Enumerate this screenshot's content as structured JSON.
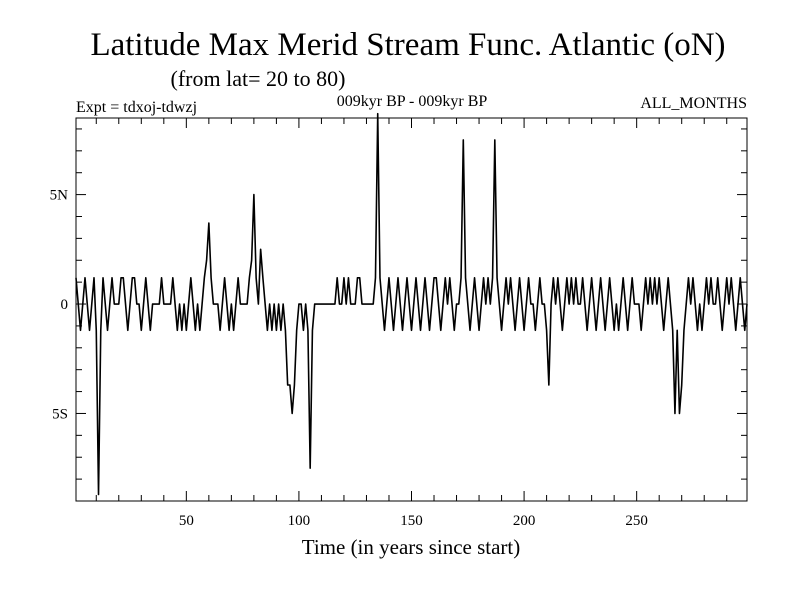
{
  "chart_data": {
    "type": "line",
    "title": "Latitude Max Merid Stream Func. Atlantic (oN)",
    "subtitle": "(from lat= 20 to 80)",
    "experiment": "Expt = tdxoj-tdwzj",
    "period": "009kyr BP - 009kyr BP",
    "season": "ALL_MONTHS",
    "xlabel": "Time (in years since start)",
    "ylabel": "",
    "xlim": [
      1,
      299
    ],
    "ylim": [
      -9,
      8.5
    ],
    "x_ticks": [
      50,
      100,
      150,
      200,
      250
    ],
    "x_tick_labels": [
      "50",
      "100",
      "150",
      "200",
      "250"
    ],
    "y_ticks": [
      5,
      0,
      -5
    ],
    "y_tick_labels": [
      "5N",
      "0",
      "5S"
    ],
    "line_color": "#000000",
    "grid": false,
    "series": [
      {
        "points": [
          [
            1,
            1.2
          ],
          [
            2,
            0
          ],
          [
            3,
            -1.2
          ],
          [
            4,
            0
          ],
          [
            5,
            1.2
          ],
          [
            6,
            0
          ],
          [
            7,
            -1.2
          ],
          [
            8,
            0
          ],
          [
            9,
            1.2
          ],
          [
            10,
            -1.2
          ],
          [
            11,
            -8.7
          ],
          [
            12,
            -1.2
          ],
          [
            13,
            1.2
          ],
          [
            14,
            0
          ],
          [
            15,
            -1.2
          ],
          [
            16,
            0
          ],
          [
            17,
            1.2
          ],
          [
            18,
            0
          ],
          [
            19,
            0
          ],
          [
            20,
            0
          ],
          [
            21,
            1.2
          ],
          [
            22,
            1.2
          ],
          [
            23,
            0
          ],
          [
            24,
            -1.2
          ],
          [
            25,
            0
          ],
          [
            26,
            1.2
          ],
          [
            27,
            1.2
          ],
          [
            28,
            0
          ],
          [
            29,
            0
          ],
          [
            30,
            -1.2
          ],
          [
            31,
            0
          ],
          [
            32,
            1.2
          ],
          [
            33,
            0
          ],
          [
            34,
            -1.2
          ],
          [
            35,
            0
          ],
          [
            36,
            0
          ],
          [
            37,
            0
          ],
          [
            38,
            0
          ],
          [
            39,
            1.2
          ],
          [
            40,
            0
          ],
          [
            41,
            0
          ],
          [
            42,
            0
          ],
          [
            43,
            0
          ],
          [
            44,
            1.2
          ],
          [
            45,
            0
          ],
          [
            46,
            -1.2
          ],
          [
            47,
            0
          ],
          [
            48,
            -1.2
          ],
          [
            49,
            0
          ],
          [
            50,
            -1.2
          ],
          [
            51,
            0
          ],
          [
            52,
            1.2
          ],
          [
            53,
            0
          ],
          [
            54,
            -1.2
          ],
          [
            55,
            0
          ],
          [
            56,
            -1.2
          ],
          [
            57,
            0
          ],
          [
            58,
            1.2
          ],
          [
            59,
            2
          ],
          [
            60,
            3.7
          ],
          [
            61,
            1.2
          ],
          [
            62,
            0
          ],
          [
            63,
            0
          ],
          [
            64,
            0
          ],
          [
            65,
            -1.2
          ],
          [
            66,
            0
          ],
          [
            67,
            1.2
          ],
          [
            68,
            0
          ],
          [
            69,
            -1.2
          ],
          [
            70,
            0
          ],
          [
            71,
            -1.2
          ],
          [
            72,
            0
          ],
          [
            73,
            1.2
          ],
          [
            74,
            0
          ],
          [
            75,
            0
          ],
          [
            76,
            0
          ],
          [
            77,
            0
          ],
          [
            78,
            1.2
          ],
          [
            79,
            2
          ],
          [
            80,
            5
          ],
          [
            81,
            1.2
          ],
          [
            82,
            0
          ],
          [
            83,
            2.5
          ],
          [
            84,
            1.2
          ],
          [
            85,
            0
          ],
          [
            86,
            -1.2
          ],
          [
            87,
            0
          ],
          [
            88,
            -1.2
          ],
          [
            89,
            0
          ],
          [
            90,
            -1.2
          ],
          [
            91,
            0
          ],
          [
            92,
            -1.2
          ],
          [
            93,
            0
          ],
          [
            94,
            -1.2
          ],
          [
            95,
            -3.7
          ],
          [
            96,
            -3.7
          ],
          [
            97,
            -5
          ],
          [
            98,
            -3.7
          ],
          [
            99,
            -1.2
          ],
          [
            100,
            0
          ],
          [
            101,
            0
          ],
          [
            102,
            -1.2
          ],
          [
            103,
            0
          ],
          [
            104,
            -1.2
          ],
          [
            105,
            -7.5
          ],
          [
            106,
            -1.2
          ],
          [
            107,
            0
          ],
          [
            108,
            0
          ],
          [
            109,
            0
          ],
          [
            110,
            0
          ],
          [
            111,
            0
          ],
          [
            112,
            0
          ],
          [
            113,
            0
          ],
          [
            114,
            0
          ],
          [
            115,
            0
          ],
          [
            116,
            0
          ],
          [
            117,
            1.2
          ],
          [
            118,
            0
          ],
          [
            119,
            0
          ],
          [
            120,
            1.2
          ],
          [
            121,
            0
          ],
          [
            122,
            1.2
          ],
          [
            123,
            0
          ],
          [
            124,
            0
          ],
          [
            125,
            0
          ],
          [
            126,
            1.2
          ],
          [
            127,
            1.2
          ],
          [
            128,
            0
          ],
          [
            129,
            0
          ],
          [
            130,
            0
          ],
          [
            131,
            0
          ],
          [
            132,
            0
          ],
          [
            133,
            0
          ],
          [
            134,
            1.2
          ],
          [
            135,
            8.7
          ],
          [
            136,
            1.2
          ],
          [
            137,
            0
          ],
          [
            138,
            -1.2
          ],
          [
            139,
            0
          ],
          [
            140,
            1.2
          ],
          [
            141,
            0
          ],
          [
            142,
            -1.2
          ],
          [
            143,
            0
          ],
          [
            144,
            1.2
          ],
          [
            145,
            0
          ],
          [
            146,
            -1.2
          ],
          [
            147,
            0
          ],
          [
            148,
            1.2
          ],
          [
            149,
            0
          ],
          [
            150,
            -1.2
          ],
          [
            151,
            0
          ],
          [
            152,
            1.2
          ],
          [
            153,
            0
          ],
          [
            154,
            -1.2
          ],
          [
            155,
            0
          ],
          [
            156,
            1.2
          ],
          [
            157,
            0
          ],
          [
            158,
            -1.2
          ],
          [
            159,
            0
          ],
          [
            160,
            1.2
          ],
          [
            161,
            1.2
          ],
          [
            162,
            0
          ],
          [
            163,
            -1.2
          ],
          [
            164,
            0
          ],
          [
            165,
            1.2
          ],
          [
            166,
            0
          ],
          [
            167,
            1.2
          ],
          [
            168,
            0
          ],
          [
            169,
            -1.2
          ],
          [
            170,
            0
          ],
          [
            171,
            0
          ],
          [
            172,
            1.2
          ],
          [
            173,
            7.5
          ],
          [
            174,
            1.2
          ],
          [
            175,
            0
          ],
          [
            176,
            -1.2
          ],
          [
            177,
            0
          ],
          [
            178,
            1.2
          ],
          [
            179,
            0
          ],
          [
            180,
            -1.2
          ],
          [
            181,
            0
          ],
          [
            182,
            1.2
          ],
          [
            183,
            0
          ],
          [
            184,
            1.2
          ],
          [
            185,
            0
          ],
          [
            186,
            1.2
          ],
          [
            187,
            7.5
          ],
          [
            188,
            1.2
          ],
          [
            189,
            0
          ],
          [
            190,
            -1.2
          ],
          [
            191,
            0
          ],
          [
            192,
            1.2
          ],
          [
            193,
            0
          ],
          [
            194,
            1.2
          ],
          [
            195,
            0
          ],
          [
            196,
            -1.2
          ],
          [
            197,
            0
          ],
          [
            198,
            1.2
          ],
          [
            199,
            0
          ],
          [
            200,
            -1.2
          ],
          [
            201,
            0
          ],
          [
            202,
            1.2
          ],
          [
            203,
            0
          ],
          [
            204,
            0
          ],
          [
            205,
            -1.2
          ],
          [
            206,
            0
          ],
          [
            207,
            1.2
          ],
          [
            208,
            0
          ],
          [
            209,
            0
          ],
          [
            210,
            -1.2
          ],
          [
            211,
            -3.7
          ],
          [
            212,
            0
          ],
          [
            213,
            1.2
          ],
          [
            214,
            0
          ],
          [
            215,
            1.2
          ],
          [
            216,
            0
          ],
          [
            217,
            -1.2
          ],
          [
            218,
            0
          ],
          [
            219,
            1.2
          ],
          [
            220,
            0
          ],
          [
            221,
            1.2
          ],
          [
            222,
            0
          ],
          [
            223,
            1.2
          ],
          [
            224,
            0
          ],
          [
            225,
            0
          ],
          [
            226,
            1.2
          ],
          [
            227,
            0
          ],
          [
            228,
            -1.2
          ],
          [
            229,
            0
          ],
          [
            230,
            1.2
          ],
          [
            231,
            0
          ],
          [
            232,
            -1.2
          ],
          [
            233,
            0
          ],
          [
            234,
            1.2
          ],
          [
            235,
            0
          ],
          [
            236,
            -1.2
          ],
          [
            237,
            0
          ],
          [
            238,
            1.2
          ],
          [
            239,
            0
          ],
          [
            240,
            -1.2
          ],
          [
            241,
            0
          ],
          [
            242,
            -1.2
          ],
          [
            243,
            0
          ],
          [
            244,
            1.2
          ],
          [
            245,
            0
          ],
          [
            246,
            -1.2
          ],
          [
            247,
            0
          ],
          [
            248,
            1.2
          ],
          [
            249,
            0
          ],
          [
            250,
            0
          ],
          [
            251,
            0
          ],
          [
            252,
            -1.2
          ],
          [
            253,
            0
          ],
          [
            254,
            1.2
          ],
          [
            255,
            0
          ],
          [
            256,
            1.2
          ],
          [
            257,
            0
          ],
          [
            258,
            1.2
          ],
          [
            259,
            0
          ],
          [
            260,
            1.2
          ],
          [
            261,
            0
          ],
          [
            262,
            -1.2
          ],
          [
            263,
            0
          ],
          [
            264,
            1.2
          ],
          [
            265,
            0
          ],
          [
            266,
            -1.2
          ],
          [
            267,
            -5
          ],
          [
            268,
            -1.2
          ],
          [
            269,
            -5
          ],
          [
            270,
            -3.7
          ],
          [
            271,
            -1.2
          ],
          [
            272,
            0
          ],
          [
            273,
            1.2
          ],
          [
            274,
            0
          ],
          [
            275,
            1.2
          ],
          [
            276,
            0
          ],
          [
            277,
            -1.2
          ],
          [
            278,
            0
          ],
          [
            279,
            -1.2
          ],
          [
            280,
            0
          ],
          [
            281,
            1.2
          ],
          [
            282,
            0
          ],
          [
            283,
            1.2
          ],
          [
            284,
            0
          ],
          [
            285,
            0
          ],
          [
            286,
            1.2
          ],
          [
            287,
            0
          ],
          [
            288,
            -1.2
          ],
          [
            289,
            0
          ],
          [
            290,
            1.2
          ],
          [
            291,
            0
          ],
          [
            292,
            1.2
          ],
          [
            293,
            0
          ],
          [
            294,
            -1.2
          ],
          [
            295,
            0
          ],
          [
            296,
            1.2
          ],
          [
            297,
            0
          ],
          [
            298,
            -1.2
          ],
          [
            299,
            0
          ]
        ]
      }
    ]
  }
}
